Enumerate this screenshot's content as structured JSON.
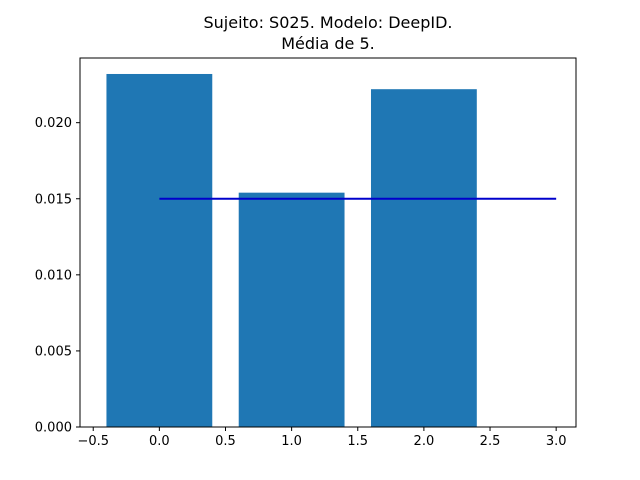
{
  "chart_data": {
    "type": "bar",
    "title_lines": [
      "Sujeito: S025. Modelo: DeepID.",
      "Média de 5."
    ],
    "xlabel": "",
    "ylabel": "",
    "bars": [
      {
        "x": 0,
        "value": 0.0232
      },
      {
        "x": 1,
        "value": 0.0154
      },
      {
        "x": 2,
        "value": 0.0222
      }
    ],
    "bar_width": 0.8,
    "reference_line": {
      "x": [
        0,
        3
      ],
      "y": 0.015,
      "color": "#0000cc"
    },
    "xlim": [
      -0.6,
      3.15
    ],
    "ylim": [
      0,
      0.02425
    ],
    "xticks": [
      -0.5,
      0.0,
      0.5,
      1.0,
      1.5,
      2.0,
      2.5,
      3.0
    ],
    "xtick_labels": [
      "−0.5",
      "0.0",
      "0.5",
      "1.0",
      "1.5",
      "2.0",
      "2.5",
      "3.0"
    ],
    "yticks": [
      0,
      0.005,
      0.01,
      0.015,
      0.02
    ],
    "ytick_labels": [
      "0.000",
      "0.005",
      "0.010",
      "0.015",
      "0.020"
    ],
    "bar_color": "#1f77b4",
    "grid": false,
    "legend": "none"
  }
}
